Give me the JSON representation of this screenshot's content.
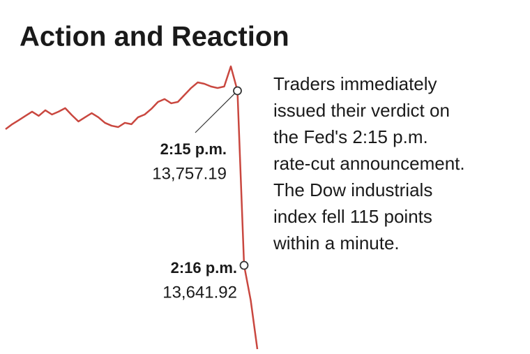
{
  "chart_data": {
    "type": "line",
    "title": "Action and Reaction",
    "note": [
      "Traders immediately",
      "issued their verdict on",
      "the Fed's 2:15 p.m.",
      "rate-cut announcement.",
      "The Dow industrials",
      "index fell 115 points",
      "within a minute."
    ],
    "series": [
      {
        "color": "#c9473f",
        "values": [
          13731.8,
          13735.1,
          13737.8,
          13740.6,
          13743.4,
          13740.6,
          13744.3,
          13741.5,
          13743.4,
          13745.7,
          13741.1,
          13736.9,
          13739.7,
          13742.4,
          13739.7,
          13736.0,
          13734.1,
          13733.2,
          13736.0,
          13735.1,
          13739.7,
          13741.5,
          13745.2,
          13749.8,
          13751.7,
          13748.9,
          13749.8,
          13754.4,
          13759.0,
          13762.7,
          13761.8,
          13760.0,
          13759.0,
          13760.0,
          13773.3,
          13757.19,
          13641.92,
          13618.9,
          13586.6
        ]
      }
    ],
    "ylim": [
      13580,
      13780
    ],
    "annotations": [
      {
        "label": "2:15 p.m.",
        "value": 13757.19,
        "value_label": "13,757.19"
      },
      {
        "label": "2:16 p.m.",
        "value": 13641.92,
        "value_label": "13,641.92"
      }
    ]
  }
}
